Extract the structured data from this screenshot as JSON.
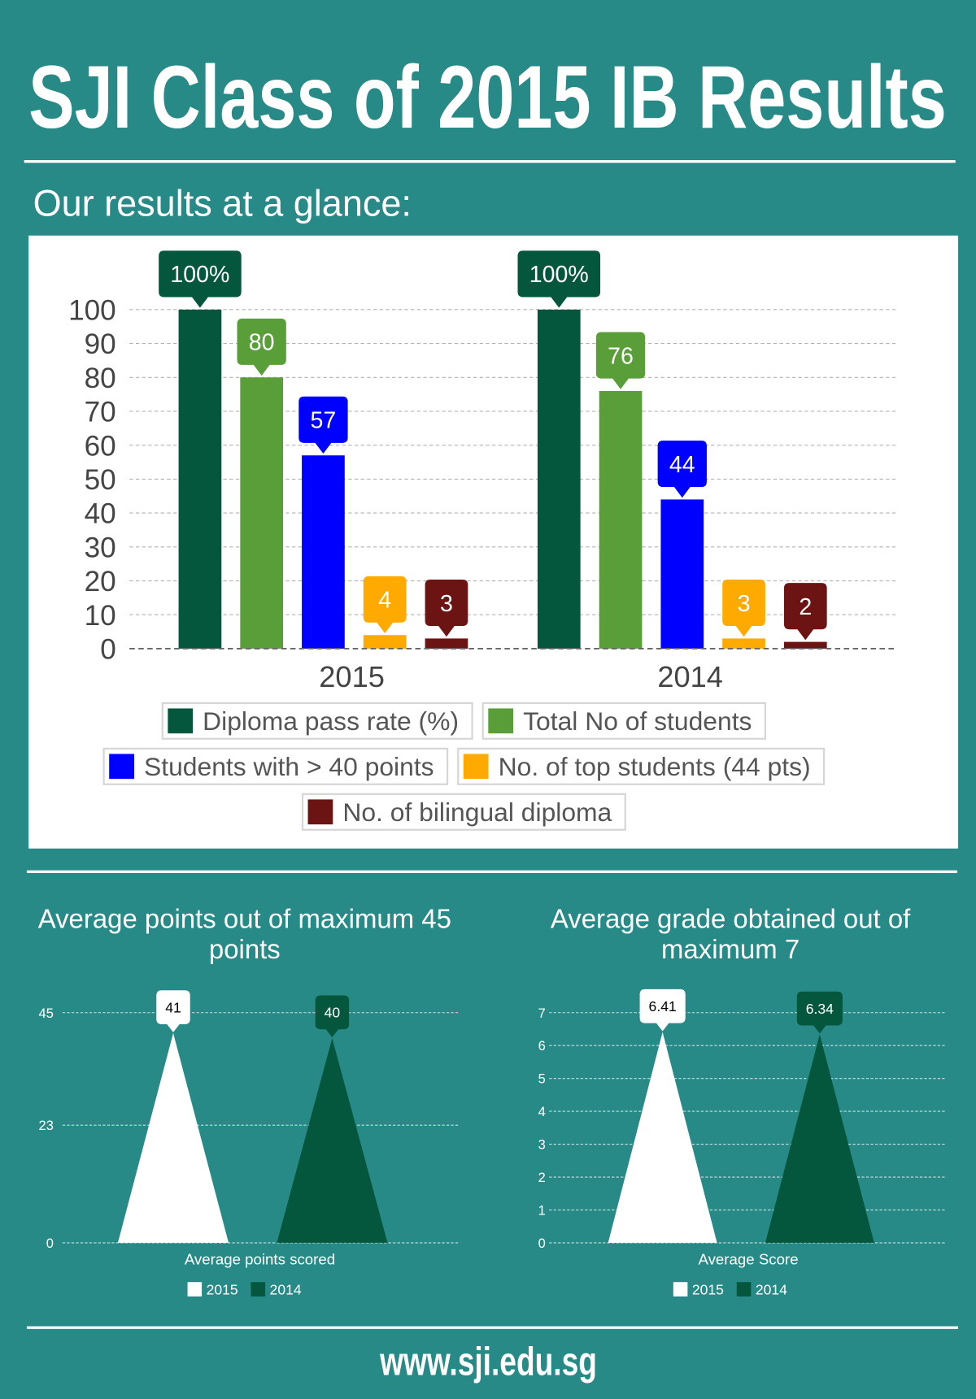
{
  "title": "SJI Class of 2015 IB Results",
  "section_heading": "Our results at a glance:",
  "footer": {
    "link_text": "www.sji.edu.sg"
  },
  "colors": {
    "background": "#278a86",
    "panel": "#ffffff",
    "divider": "#ffffff",
    "light_text": "#ffffff",
    "axis_text": "#444444",
    "legend_text": "#555555",
    "legend_border": "#d6d6d6",
    "dark_green": "#04573c"
  },
  "chart_data": [
    {
      "type": "bar",
      "categories": [
        "2015",
        "2014"
      ],
      "ylim": [
        0,
        100
      ],
      "yticks": [
        0,
        10,
        20,
        30,
        40,
        50,
        60,
        70,
        80,
        90,
        100
      ],
      "grid": true,
      "legend": "bottom",
      "series": [
        {
          "name": "Diploma pass rate (%)",
          "color": "#04573c",
          "label_color": "#ffffff",
          "values": [
            100,
            100
          ],
          "labels": [
            "100%",
            "100%"
          ]
        },
        {
          "name": "Total No of students",
          "color": "#5a9e3a",
          "label_color": "#ffffff",
          "values": [
            80,
            76
          ],
          "labels": [
            "80",
            "76"
          ]
        },
        {
          "name": "Students with > 40 points",
          "color": "#0000ff",
          "label_color": "#ffffff",
          "values": [
            57,
            44
          ],
          "labels": [
            "57",
            "44"
          ]
        },
        {
          "name": "No. of top students (44 pts)",
          "color": "#ffaa00",
          "label_color": "#ffffff",
          "values": [
            4,
            3
          ],
          "labels": [
            "4",
            "3"
          ]
        },
        {
          "name": "No. of bilingual diploma",
          "color": "#6c1414",
          "label_color": "#ffffff",
          "values": [
            3,
            2
          ],
          "labels": [
            "3",
            "2"
          ]
        }
      ]
    },
    {
      "type": "bar",
      "mark": "triangle",
      "title_lines": [
        "Average points out of maximum 45",
        "points"
      ],
      "categories": [
        "Average points scored"
      ],
      "ylim": [
        0,
        45
      ],
      "yticks": [
        0,
        23,
        45
      ],
      "grid": true,
      "legend": "bottom",
      "series": [
        {
          "name": "2015",
          "color": "#ffffff",
          "label_color": "#000000",
          "values": [
            41
          ],
          "labels": [
            "41"
          ]
        },
        {
          "name": "2014",
          "color": "#04573c",
          "label_color": "#ffffff",
          "values": [
            40
          ],
          "labels": [
            "40"
          ]
        }
      ]
    },
    {
      "type": "bar",
      "mark": "triangle",
      "title_lines": [
        "Average grade obtained out of",
        "maximum 7"
      ],
      "categories": [
        "Average Score"
      ],
      "ylim": [
        0,
        7
      ],
      "yticks": [
        0,
        1,
        2,
        3,
        4,
        5,
        6,
        7
      ],
      "grid": true,
      "legend": "bottom",
      "series": [
        {
          "name": "2015",
          "color": "#ffffff",
          "label_color": "#000000",
          "values": [
            6.41
          ],
          "labels": [
            "6.41"
          ]
        },
        {
          "name": "2014",
          "color": "#04573c",
          "label_color": "#ffffff",
          "values": [
            6.34
          ],
          "labels": [
            "6.34"
          ]
        }
      ]
    }
  ]
}
